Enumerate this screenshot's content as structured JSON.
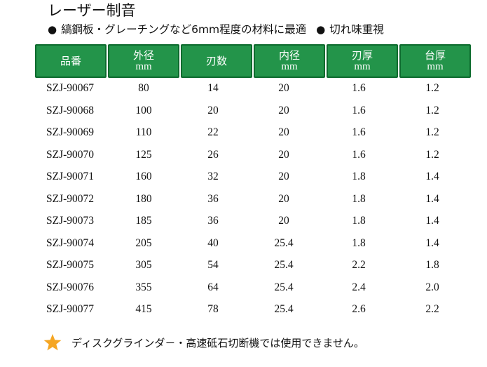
{
  "title": "レーザー制音",
  "subtitle": {
    "bullet": "●",
    "materials": "縞鋼板・グレーチングなど6mm程度の材料に最適",
    "feature": "切れ味重視"
  },
  "table": {
    "headers": [
      {
        "label": "品番",
        "unit": ""
      },
      {
        "label": "外径",
        "unit": "mm"
      },
      {
        "label": "刃数",
        "unit": ""
      },
      {
        "label": "内径",
        "unit": "mm"
      },
      {
        "label": "刃厚",
        "unit": "mm"
      },
      {
        "label": "台厚",
        "unit": "mm"
      }
    ],
    "rows": [
      [
        "SZJ-90067",
        "80",
        "14",
        "20",
        "1.6",
        "1.2"
      ],
      [
        "SZJ-90068",
        "100",
        "20",
        "20",
        "1.6",
        "1.2"
      ],
      [
        "SZJ-90069",
        "110",
        "22",
        "20",
        "1.6",
        "1.2"
      ],
      [
        "SZJ-90070",
        "125",
        "26",
        "20",
        "1.6",
        "1.2"
      ],
      [
        "SZJ-90071",
        "160",
        "32",
        "20",
        "1.8",
        "1.4"
      ],
      [
        "SZJ-90072",
        "180",
        "36",
        "20",
        "1.8",
        "1.4"
      ],
      [
        "SZJ-90073",
        "185",
        "36",
        "20",
        "1.8",
        "1.4"
      ],
      [
        "SZJ-90074",
        "205",
        "40",
        "25.4",
        "1.8",
        "1.4"
      ],
      [
        "SZJ-90075",
        "305",
        "54",
        "25.4",
        "2.2",
        "1.8"
      ],
      [
        "SZJ-90076",
        "355",
        "64",
        "25.4",
        "2.4",
        "2.0"
      ],
      [
        "SZJ-90077",
        "415",
        "78",
        "25.4",
        "2.6",
        "2.2"
      ]
    ]
  },
  "note": {
    "icon": "star-icon",
    "text": "ディスクグラインダ－・高速砥石切断機では使用できません。"
  },
  "colors": {
    "header_bg": "#23944a",
    "header_border": "#0c6a2d",
    "star": "#f5a623"
  }
}
